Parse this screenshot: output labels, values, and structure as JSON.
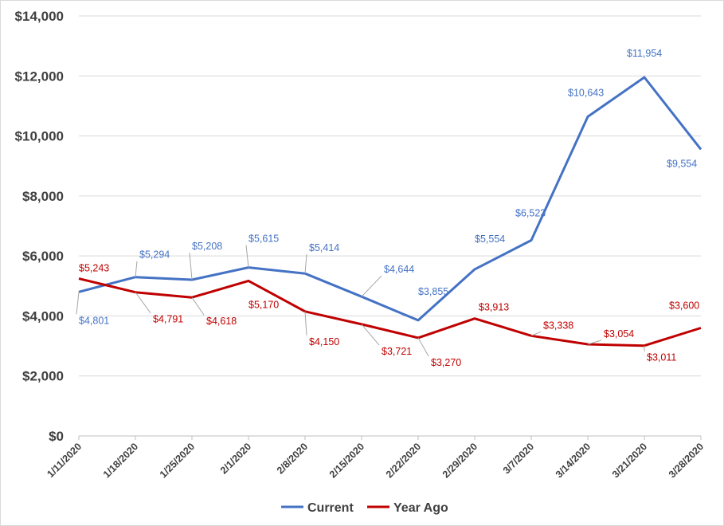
{
  "chart_data": {
    "type": "line",
    "title": "",
    "xlabel": "",
    "ylabel": "",
    "categories": [
      "1/11/2020",
      "1/18/2020",
      "1/25/2020",
      "2/1/2020",
      "2/8/2020",
      "2/15/2020",
      "2/22/2020",
      "2/29/2020",
      "3/7/2020",
      "3/14/2020",
      "3/21/2020",
      "3/28/2020"
    ],
    "ylim": [
      0,
      14000
    ],
    "yticks": [
      {
        "value": 0,
        "label": "$0"
      },
      {
        "value": 2000,
        "label": "$2,000"
      },
      {
        "value": 4000,
        "label": "$4,000"
      },
      {
        "value": 6000,
        "label": "$6,000"
      },
      {
        "value": 8000,
        "label": "$8,000"
      },
      {
        "value": 10000,
        "label": "$10,000"
      },
      {
        "value": 12000,
        "label": "$12,000"
      },
      {
        "value": 14000,
        "label": "$14,000"
      }
    ],
    "grid": true,
    "legend_position": "bottom",
    "series": [
      {
        "name": "Current",
        "color": "#4472C4",
        "values": [
          4801,
          5294,
          5208,
          5615,
          5414,
          4644,
          3855,
          5554,
          6523,
          10643,
          11954,
          9554
        ],
        "labels": [
          "$4,801",
          "$5,294",
          "$5,208",
          "$5,615",
          "$5,414",
          "$4,644",
          "$3,855",
          "$5,554",
          "$6,523",
          "$10,643",
          "$11,954",
          "$9,554"
        ]
      },
      {
        "name": "Year Ago",
        "color": "#C00000",
        "values": [
          5243,
          4791,
          4618,
          5170,
          4150,
          3721,
          3270,
          3913,
          3338,
          3054,
          3011,
          3600
        ],
        "labels": [
          "$5,243",
          "$4,791",
          "$4,618",
          "$5,170",
          "$4,150",
          "$3,721",
          "$3,270",
          "$3,913",
          "$3,338",
          "$3,054",
          "$3,011",
          "$3,600"
        ]
      }
    ]
  }
}
